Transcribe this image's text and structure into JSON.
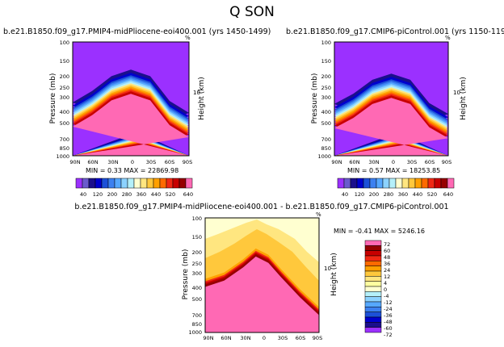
{
  "figure_title": "Q SON",
  "palette_abs": [
    "#9B30FF",
    "#6A5ACD",
    "#1B0F8C",
    "#0000CD",
    "#1C50D8",
    "#3C80F0",
    "#56A8FF",
    "#8CD2FF",
    "#B4F0FA",
    "#FFFFD0",
    "#FFE680",
    "#FFC83C",
    "#FFA000",
    "#FF6A00",
    "#F02814",
    "#C80000",
    "#960000",
    "#FF69B4"
  ],
  "palette_diff": [
    "#9B30FF",
    "#1B0F8C",
    "#0000CD",
    "#1C50D8",
    "#3C80F0",
    "#56A8FF",
    "#8CD2FF",
    "#B4F0FA",
    "#FFFFD0",
    "#FFFFA0",
    "#FFE680",
    "#FFC83C",
    "#FFA000",
    "#FF6A00",
    "#F02814",
    "#C80000",
    "#960000",
    "#FF69B4"
  ],
  "chart_data": [
    {
      "type": "heatmap",
      "title": "b.e21.B1850.f09_g17.PMIP4-midPliocene-eoi400.001 (yrs 1450-1499)",
      "ylabel": "Pressure (mb)",
      "ylabel_right": "Height (km)",
      "y_ticks": [
        "100",
        "150",
        "200",
        "250",
        "300",
        "400",
        "500",
        "700",
        "850",
        "1000"
      ],
      "x_ticks": [
        "90N",
        "60N",
        "30N",
        "0",
        "30S",
        "60S",
        "90S"
      ],
      "right_ticks": [
        "10"
      ],
      "right_top_mark": "%",
      "stats": "MIN =    0.33   MAX = 22869.98",
      "colorbar_labels": [
        "40",
        "120",
        "200",
        "280",
        "360",
        "440",
        "520",
        "640"
      ],
      "contour_tops_hpa": [
        {
          "lat": -90,
          "p": 420
        },
        {
          "lat": -60,
          "p": 330
        },
        {
          "lat": -30,
          "p": 200
        },
        {
          "lat": 0,
          "p": 175
        },
        {
          "lat": 30,
          "p": 200
        },
        {
          "lat": 60,
          "p": 270
        },
        {
          "lat": 90,
          "p": 340
        }
      ]
    },
    {
      "type": "heatmap",
      "title": "b.e21.B1850.f09_g17.CMIP6-piControl.001 (yrs 1150-1199)",
      "ylabel": "Pressure (mb)",
      "ylabel_right": "Height (km)",
      "y_ticks": [
        "100",
        "150",
        "200",
        "250",
        "300",
        "400",
        "500",
        "700",
        "850",
        "1000"
      ],
      "x_ticks": [
        "90N",
        "60N",
        "30N",
        "0",
        "30S",
        "60S",
        "90S"
      ],
      "right_ticks": [
        "10"
      ],
      "right_top_mark": "%",
      "stats": "MIN =    0.57   MAX = 18253.85",
      "colorbar_labels": [
        "40",
        "120",
        "200",
        "280",
        "360",
        "440",
        "520",
        "640"
      ],
      "contour_tops_hpa": [
        {
          "lat": -90,
          "p": 430
        },
        {
          "lat": -60,
          "p": 345
        },
        {
          "lat": -30,
          "p": 215
        },
        {
          "lat": 0,
          "p": 190
        },
        {
          "lat": 30,
          "p": 215
        },
        {
          "lat": 60,
          "p": 285
        },
        {
          "lat": 90,
          "p": 350
        }
      ]
    },
    {
      "type": "heatmap",
      "title": "b.e21.B1850.f09_g17.PMIP4-midPliocene-eoi400.001 - b.e21.B1850.f09_g17.CMIP6-piControl.001",
      "ylabel": "Pressure (mb)",
      "ylabel_right": "Height (km)",
      "y_ticks": [
        "100",
        "150",
        "200",
        "250",
        "300",
        "400",
        "500",
        "700",
        "850",
        "1000"
      ],
      "x_ticks": [
        "90N",
        "60N",
        "30N",
        "0",
        "30S",
        "60S",
        "90S"
      ],
      "right_ticks": [
        "10"
      ],
      "right_top_mark": "%",
      "stats": "MIN =    -0.41   MAX = 5246.16",
      "colorbar_labels": [
        "72",
        "60",
        "48",
        "36",
        "24",
        "12",
        "4",
        "0",
        "-4",
        "-12",
        "-24",
        "-36",
        "-48",
        "-60",
        "-72"
      ]
    }
  ]
}
